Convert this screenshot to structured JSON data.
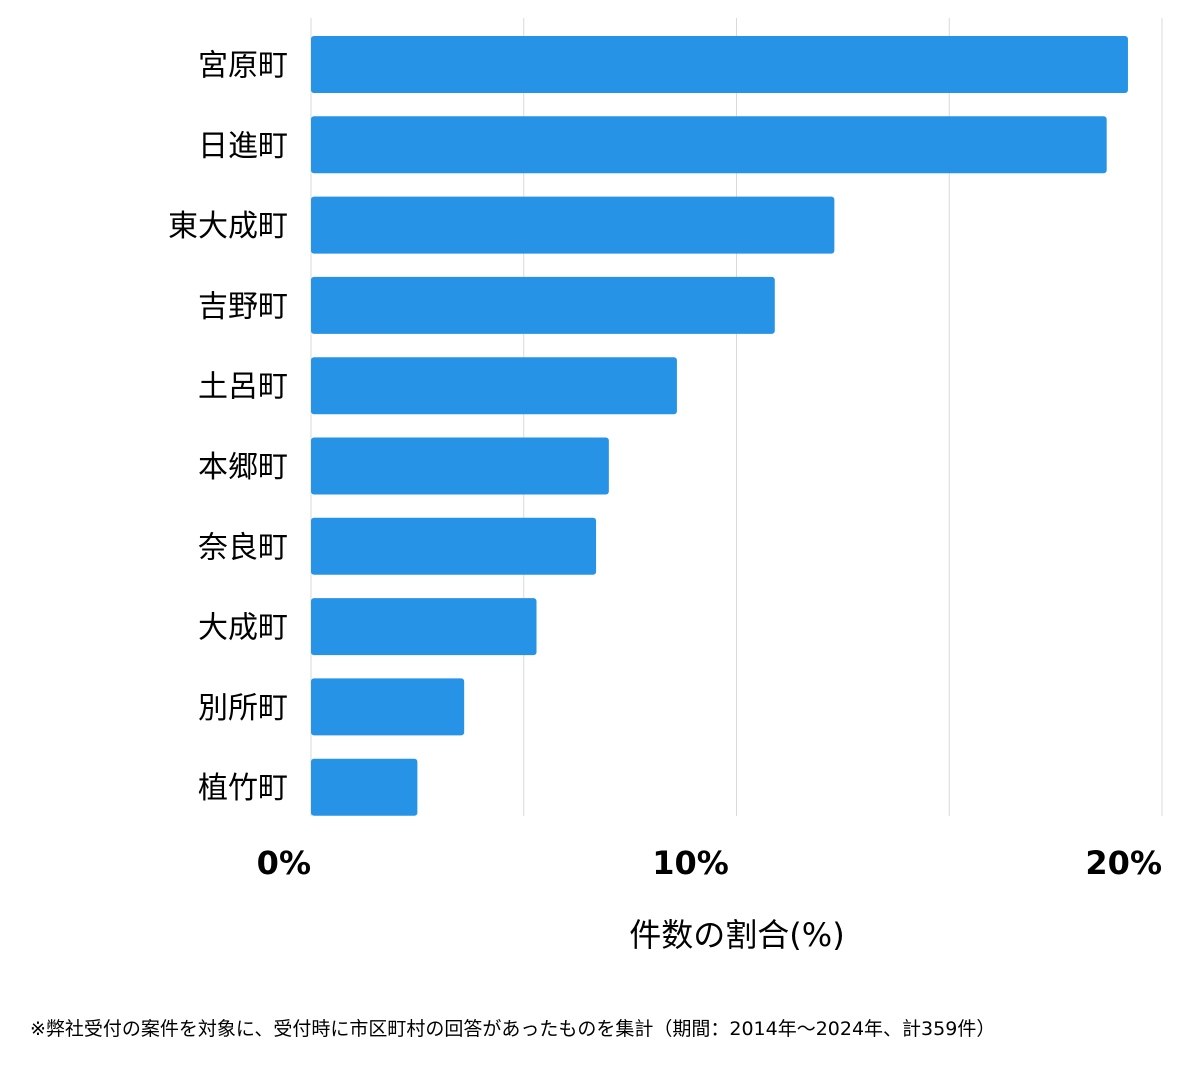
{
  "chart_data": {
    "type": "bar",
    "orientation": "horizontal",
    "categories": [
      "宮原町",
      "日進町",
      "東大成町",
      "吉野町",
      "土呂町",
      "本郷町",
      "奈良町",
      "大成町",
      "別所町",
      "植竹町"
    ],
    "values": [
      19.2,
      18.7,
      12.3,
      10.9,
      8.6,
      7.0,
      6.7,
      5.3,
      3.6,
      2.5
    ],
    "xlim": [
      0,
      20
    ],
    "xticks": [
      "0%",
      "10%",
      "20%"
    ],
    "xlabel": "件数の割合(%)",
    "grid": "vertical",
    "bar_color": "#2693e6",
    "grid_color": "#d9d9d9"
  },
  "footnote": "※弊社受付の案件を対象に、受付時に市区町村の回答があったものを集計（期間：2014年〜2024年、計359件）"
}
